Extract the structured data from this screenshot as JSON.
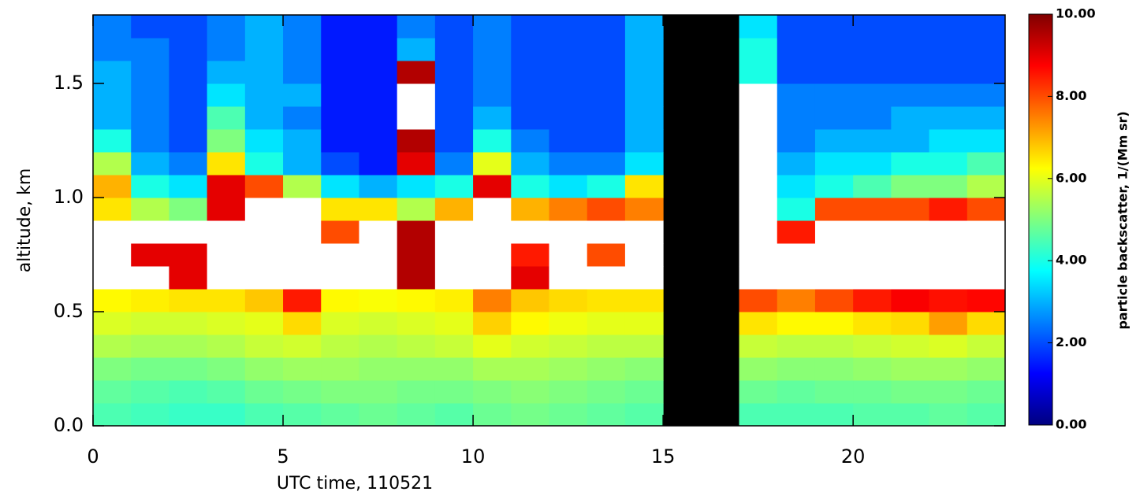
{
  "chart_data": {
    "type": "heatmap",
    "x_label": "UTC time, 110521",
    "y_label": "altitude, km",
    "colorbar_label": "particle backscatter, 1/(Mm sr)",
    "x_edges": [
      0,
      1,
      2,
      3,
      4,
      5,
      6,
      7,
      8,
      9,
      10,
      11,
      12,
      13,
      14,
      15,
      16,
      17,
      18,
      19,
      20,
      21,
      22,
      23,
      24
    ],
    "y_edges": [
      0,
      0.1,
      0.2,
      0.3,
      0.4,
      0.5,
      0.6,
      0.7,
      0.8,
      0.9,
      1.0,
      1.1,
      1.2,
      1.3,
      1.4,
      1.5,
      1.6,
      1.7,
      1.8
    ],
    "xlim": [
      0,
      24
    ],
    "ylim": [
      0,
      1.8
    ],
    "xticks": [
      0,
      5,
      10,
      15,
      20
    ],
    "yticks": [
      {
        "value": 0,
        "label": "0.0"
      },
      0.5,
      {
        "value": 1,
        "label": "1.0"
      },
      1.5
    ],
    "zlim": [
      0,
      10
    ],
    "zticks": [
      {
        "value": 0,
        "label": "0.00"
      },
      {
        "value": 2,
        "label": "2.00"
      },
      {
        "value": 4,
        "label": "4.00"
      },
      {
        "value": 6,
        "label": "6.00"
      },
      {
        "value": 8,
        "label": "8.00"
      },
      {
        "value": 10,
        "label": "10.00"
      }
    ],
    "colormap": [
      "#00007f",
      "#0000ff",
      "#007fff",
      "#00ffff",
      "#7fff7f",
      "#ffff00",
      "#ff7f00",
      "#ff0000",
      "#7f0000"
    ],
    "over_color": "#ffffff",
    "missing_color": "#000000",
    "z": [
      [
        4.5,
        4.4,
        4.3,
        4.3,
        4.5,
        4.6,
        4.7,
        4.8,
        4.7,
        4.6,
        4.8,
        4.9,
        4.8,
        4.7,
        4.6,
        null,
        null,
        4.5,
        4.5,
        4.5,
        4.6,
        4.6,
        4.7,
        4.6
      ],
      [
        4.7,
        4.6,
        4.5,
        4.6,
        4.8,
        4.9,
        5.0,
        5.0,
        4.9,
        4.9,
        5.0,
        5.1,
        5.0,
        4.9,
        4.8,
        null,
        null,
        4.8,
        4.7,
        4.8,
        4.8,
        4.9,
        4.9,
        4.8
      ],
      [
        5.0,
        4.9,
        4.9,
        5.0,
        5.2,
        5.3,
        5.3,
        5.2,
        5.2,
        5.2,
        5.4,
        5.4,
        5.3,
        5.2,
        5.1,
        null,
        null,
        5.2,
        5.1,
        5.1,
        5.2,
        5.3,
        5.3,
        5.2
      ],
      [
        5.5,
        5.4,
        5.4,
        5.5,
        5.7,
        5.8,
        5.6,
        5.5,
        5.6,
        5.7,
        6.0,
        5.8,
        5.7,
        5.6,
        5.6,
        null,
        null,
        5.7,
        5.6,
        5.6,
        5.7,
        5.8,
        5.9,
        5.7
      ],
      [
        5.9,
        5.8,
        5.8,
        5.9,
        6.0,
        6.6,
        5.9,
        5.8,
        5.9,
        6.0,
        6.7,
        6.3,
        6.1,
        6.0,
        6.0,
        null,
        null,
        6.5,
        6.3,
        6.3,
        6.5,
        6.6,
        7.2,
        6.6
      ],
      [
        6.3,
        6.4,
        6.5,
        6.5,
        6.8,
        8.5,
        6.3,
        6.2,
        6.3,
        6.4,
        7.5,
        6.8,
        6.6,
        6.5,
        6.5,
        null,
        null,
        8.0,
        7.5,
        8.0,
        8.5,
        8.8,
        8.6,
        8.7
      ],
      [
        12,
        12,
        9,
        12,
        12,
        12,
        12,
        12,
        9.5,
        12,
        12,
        9,
        12,
        12,
        12,
        null,
        null,
        12,
        12,
        12,
        12,
        12,
        12,
        12
      ],
      [
        12,
        9,
        9,
        12,
        12,
        12,
        12,
        12,
        9.5,
        12,
        12,
        8.5,
        12,
        8,
        12,
        null,
        null,
        12,
        12,
        12,
        12,
        12,
        12,
        12
      ],
      [
        12,
        12,
        12,
        12,
        12,
        12,
        8,
        12,
        9.5,
        12,
        12,
        12,
        12,
        12,
        12,
        null,
        null,
        12,
        8.5,
        12,
        12,
        12,
        12,
        12
      ],
      [
        6.5,
        5.5,
        5,
        9,
        12,
        12,
        6.5,
        6.5,
        5.5,
        7,
        12,
        7,
        7.5,
        8,
        7.5,
        null,
        null,
        12,
        4,
        8,
        8,
        8,
        8.5,
        8
      ],
      [
        7,
        4,
        3.5,
        9,
        8,
        5.5,
        3.5,
        3,
        3.5,
        4,
        9,
        4,
        3.5,
        4,
        6.5,
        null,
        null,
        12,
        3.5,
        4,
        4.5,
        5,
        5,
        5.5
      ],
      [
        5.5,
        3,
        2.5,
        6.5,
        4,
        3,
        2,
        1.5,
        9,
        2.5,
        6,
        3,
        2.5,
        2.5,
        3.5,
        null,
        null,
        12,
        3,
        3.5,
        3.5,
        4,
        4,
        4.5
      ],
      [
        4,
        2.5,
        2,
        5,
        3.5,
        3,
        1.5,
        1.5,
        9.5,
        2,
        4,
        2.5,
        2,
        2,
        3,
        null,
        null,
        12,
        2.5,
        3,
        3,
        3,
        3.5,
        3.5
      ],
      [
        3,
        2.5,
        2,
        4.5,
        3,
        2.5,
        1.5,
        1.5,
        12,
        2,
        3,
        2,
        2,
        2,
        3,
        null,
        null,
        12,
        2.5,
        2.5,
        2.5,
        3,
        3,
        3
      ],
      [
        3,
        2.5,
        2,
        3.5,
        3,
        3,
        1.5,
        1.5,
        12,
        2,
        2.5,
        2,
        2,
        2,
        3,
        null,
        null,
        12,
        2.5,
        2.5,
        2.5,
        2.5,
        2.5,
        2.5
      ],
      [
        3,
        2.5,
        2,
        3,
        3,
        2.5,
        1.5,
        1.5,
        9.5,
        2,
        2.5,
        2,
        2,
        2,
        3,
        null,
        null,
        4,
        2,
        2,
        2,
        2,
        2,
        2
      ],
      [
        2.5,
        2.5,
        2,
        2.5,
        3,
        2.5,
        1.5,
        1.5,
        3,
        2,
        2.5,
        2,
        2,
        2,
        3,
        null,
        null,
        4,
        2,
        2,
        2,
        2,
        2,
        2
      ],
      [
        2.5,
        2,
        2,
        2.5,
        3,
        2.5,
        1.5,
        1.5,
        2.5,
        2,
        2.5,
        2,
        2,
        2,
        3,
        null,
        null,
        3.5,
        2,
        2,
        2,
        2,
        2,
        2
      ]
    ]
  }
}
